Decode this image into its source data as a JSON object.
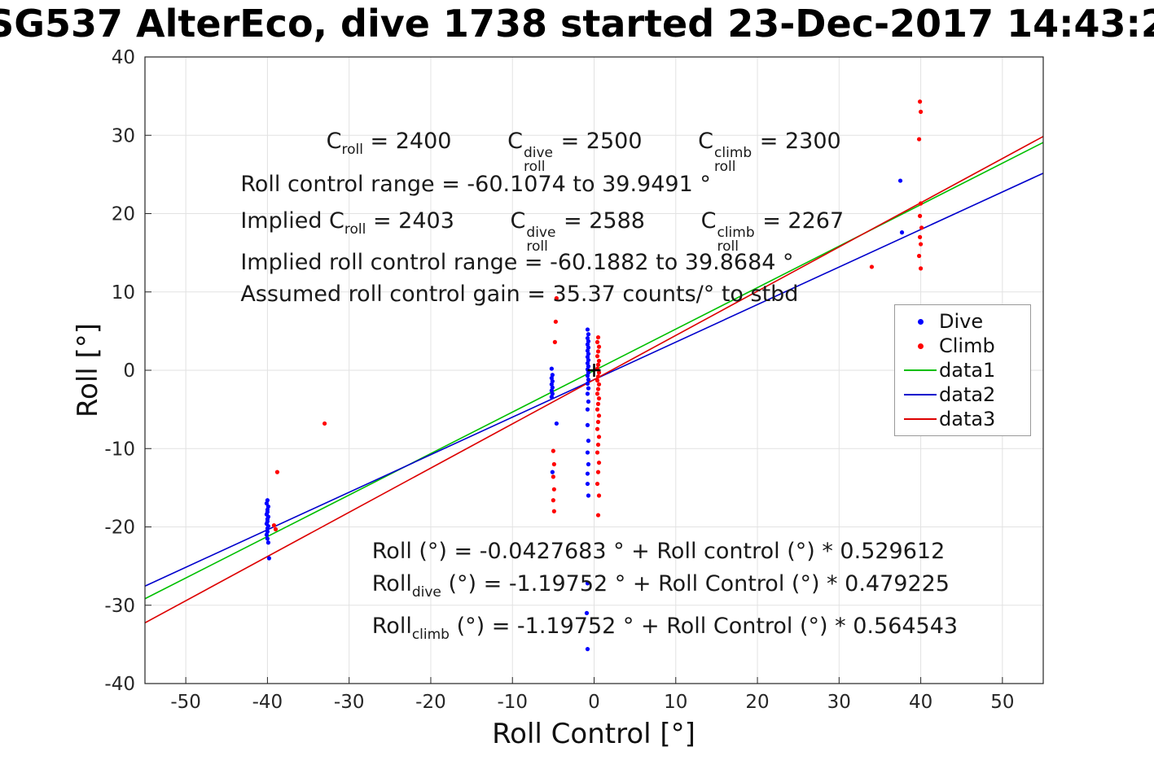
{
  "chart_data": {
    "type": "scatter",
    "title": "SG537 AlterEco, dive 1738 started 23-Dec-2017 14:43:2",
    "xlabel": "Roll Control [°]",
    "ylabel": "Roll [°]",
    "xlim": [
      -55,
      55
    ],
    "ylim": [
      -40,
      40
    ],
    "xticks": [
      -50,
      -40,
      -30,
      -20,
      -10,
      0,
      10,
      20,
      30,
      40,
      50
    ],
    "yticks": [
      -40,
      -30,
      -20,
      -10,
      0,
      10,
      20,
      30,
      40
    ],
    "grid": true,
    "colors": {
      "axis": "#262626",
      "grid": "#e2e2e2",
      "dive": "#0000ff",
      "climb": "#ff0000"
    },
    "series": [
      {
        "name": "Dive",
        "marker": "dot",
        "color": "#0000ff",
        "points": [
          [
            -40,
            -16.6
          ],
          [
            -40.1,
            -17
          ],
          [
            -39.9,
            -17.4
          ],
          [
            -40,
            -17.8
          ],
          [
            -40,
            -18.1
          ],
          [
            -40.1,
            -18.4
          ],
          [
            -39.9,
            -18.7
          ],
          [
            -40,
            -19
          ],
          [
            -40,
            -19.3
          ],
          [
            -40.1,
            -19.6
          ],
          [
            -39.9,
            -19.9
          ],
          [
            -40,
            -20.2
          ],
          [
            -40,
            -20.6
          ],
          [
            -40.1,
            -21
          ],
          [
            -40,
            -21.5
          ],
          [
            -39.9,
            -22
          ],
          [
            -39.8,
            -24
          ],
          [
            -5.2,
            0.2
          ],
          [
            -5.1,
            -0.6
          ],
          [
            -5.2,
            -1
          ],
          [
            -5.1,
            -1.4
          ],
          [
            -5.2,
            -1.8
          ],
          [
            -5.1,
            -2.2
          ],
          [
            -5.2,
            -2.6
          ],
          [
            -5.1,
            -3
          ],
          [
            -5.2,
            -3.4
          ],
          [
            -4.6,
            -6.8
          ],
          [
            -5.1,
            -13
          ],
          [
            -0.8,
            5.2
          ],
          [
            -0.7,
            4.6
          ],
          [
            -0.8,
            4.1
          ],
          [
            -0.7,
            3.7
          ],
          [
            -0.8,
            3.3
          ],
          [
            -0.7,
            2.9
          ],
          [
            -0.8,
            2.5
          ],
          [
            -0.7,
            2.1
          ],
          [
            -0.8,
            1.7
          ],
          [
            -0.7,
            1.3
          ],
          [
            -0.8,
            0.9
          ],
          [
            -0.7,
            0.5
          ],
          [
            -0.8,
            0.1
          ],
          [
            -0.7,
            -0.3
          ],
          [
            -0.8,
            -0.7
          ],
          [
            -0.7,
            -1.2
          ],
          [
            -0.8,
            -1.7
          ],
          [
            -0.7,
            -2.3
          ],
          [
            -0.8,
            -3
          ],
          [
            -0.7,
            -4
          ],
          [
            -0.8,
            -5
          ],
          [
            -0.8,
            -7
          ],
          [
            -0.7,
            -9
          ],
          [
            -0.8,
            -10.5
          ],
          [
            -0.7,
            -12
          ],
          [
            -0.8,
            -13.2
          ],
          [
            -0.8,
            -14.5
          ],
          [
            -0.7,
            -16
          ],
          [
            -0.8,
            -27.2
          ],
          [
            -0.9,
            -31
          ],
          [
            -0.8,
            -35.6
          ],
          [
            37.5,
            24.2
          ],
          [
            37.7,
            17.6
          ]
        ]
      },
      {
        "name": "Climb",
        "marker": "dot",
        "color": "#ff0000",
        "points": [
          [
            -39.2,
            -19.8
          ],
          [
            -39,
            -20.3
          ],
          [
            -38.8,
            -13
          ],
          [
            -33,
            -6.8
          ],
          [
            -4.6,
            9.2
          ],
          [
            -4.7,
            6.2
          ],
          [
            -4.8,
            3.6
          ],
          [
            -5,
            -10.3
          ],
          [
            -4.9,
            -12
          ],
          [
            -5,
            -13.6
          ],
          [
            -4.9,
            -15.2
          ],
          [
            -5,
            -16.6
          ],
          [
            -4.9,
            -18
          ],
          [
            0.5,
            4.2
          ],
          [
            0.4,
            3.6
          ],
          [
            0.6,
            3
          ],
          [
            0.5,
            2.4
          ],
          [
            0.4,
            1.8
          ],
          [
            0.6,
            1.2
          ],
          [
            0.5,
            0.7
          ],
          [
            0.4,
            0.2
          ],
          [
            0.6,
            -0.3
          ],
          [
            0.5,
            -0.8
          ],
          [
            0.4,
            -1.3
          ],
          [
            0.6,
            -1.8
          ],
          [
            0.5,
            -2.4
          ],
          [
            0.4,
            -3
          ],
          [
            0.6,
            -3.6
          ],
          [
            0.5,
            -4.3
          ],
          [
            0.4,
            -5
          ],
          [
            0.6,
            -5.8
          ],
          [
            0.5,
            -6.6
          ],
          [
            0.4,
            -7.5
          ],
          [
            0.6,
            -8.5
          ],
          [
            0.5,
            -9.5
          ],
          [
            0.4,
            -10.5
          ],
          [
            0.6,
            -11.8
          ],
          [
            0.5,
            -13
          ],
          [
            0.4,
            -14.5
          ],
          [
            0.6,
            -16
          ],
          [
            0.5,
            -18.5
          ],
          [
            39.9,
            34.3
          ],
          [
            40,
            33
          ],
          [
            39.8,
            29.5
          ],
          [
            40,
            21.3
          ],
          [
            39.9,
            19.7
          ],
          [
            40.1,
            18.2
          ],
          [
            39.9,
            17
          ],
          [
            40,
            16.1
          ],
          [
            39.8,
            14.6
          ],
          [
            40,
            13
          ],
          [
            34,
            13.2
          ]
        ]
      }
    ],
    "lines": [
      {
        "name": "data1",
        "color": "#00bf00",
        "intercept": -0.0427683,
        "slope": 0.529612
      },
      {
        "name": "data2",
        "color": "#0000cc",
        "intercept": -1.19752,
        "slope": 0.479225
      },
      {
        "name": "data3",
        "color": "#dd0000",
        "intercept": -1.19752,
        "slope": 0.564543
      }
    ],
    "center_marker": {
      "x": 0,
      "y": 0,
      "symbol": "+",
      "color": "#000000"
    },
    "legend": {
      "position": "right",
      "entries": [
        {
          "label": "Dive",
          "marker": "dot",
          "color": "#0000ff"
        },
        {
          "label": "Climb",
          "marker": "dot",
          "color": "#ff0000"
        },
        {
          "label": "data1",
          "marker": "line",
          "color": "#00bf00"
        },
        {
          "label": "data2",
          "marker": "line",
          "color": "#0000cc"
        },
        {
          "label": "data3",
          "marker": "line",
          "color": "#dd0000"
        }
      ]
    },
    "annotations": [
      {
        "x": -32.8,
        "y": 29.2,
        "segments": [
          {
            "t": "C"
          },
          {
            "sub": "roll"
          },
          {
            "t": " = 2400        "
          },
          {
            "t": "C"
          },
          {
            "sup": "dive",
            "sub": "roll"
          },
          {
            "t": " = 2500        "
          },
          {
            "t": "C"
          },
          {
            "sup": "climb",
            "sub": "roll"
          },
          {
            "t": " = 2300"
          }
        ]
      },
      {
        "x": -43.3,
        "y": 23.7,
        "segments": [
          {
            "t": "Roll control range = -60.1074 to 39.9491 °"
          }
        ]
      },
      {
        "x": -43.3,
        "y": 19.0,
        "segments": [
          {
            "t": "Implied C"
          },
          {
            "sub": "roll"
          },
          {
            "t": " = 2403        "
          },
          {
            "t": "C"
          },
          {
            "sup": "dive",
            "sub": "roll"
          },
          {
            "t": " = 2588        "
          },
          {
            "t": "C"
          },
          {
            "sup": "climb",
            "sub": "roll"
          },
          {
            "t": " = 2267"
          }
        ]
      },
      {
        "x": -43.3,
        "y": 13.7,
        "segments": [
          {
            "t": "Implied roll control range = -60.1882 to 39.8684 °"
          }
        ]
      },
      {
        "x": -43.3,
        "y": 9.7,
        "segments": [
          {
            "t": "Assumed roll control gain = 35.37 counts/° to stbd"
          }
        ]
      },
      {
        "x": -27.2,
        "y": -23.2,
        "segments": [
          {
            "t": "Roll (°) = -0.0427683 ° + Roll control (°) * 0.529612"
          }
        ]
      },
      {
        "x": -27.2,
        "y": -27.3,
        "segments": [
          {
            "t": "Roll"
          },
          {
            "sub": "dive"
          },
          {
            "t": " (°) = -1.19752 ° + Roll Control (°) * 0.479225"
          }
        ]
      },
      {
        "x": -27.2,
        "y": -32.7,
        "segments": [
          {
            "t": "Roll"
          },
          {
            "sub": "climb"
          },
          {
            "t": " (°) = -1.19752 ° + Roll Control (°) * 0.564543"
          }
        ]
      }
    ]
  }
}
